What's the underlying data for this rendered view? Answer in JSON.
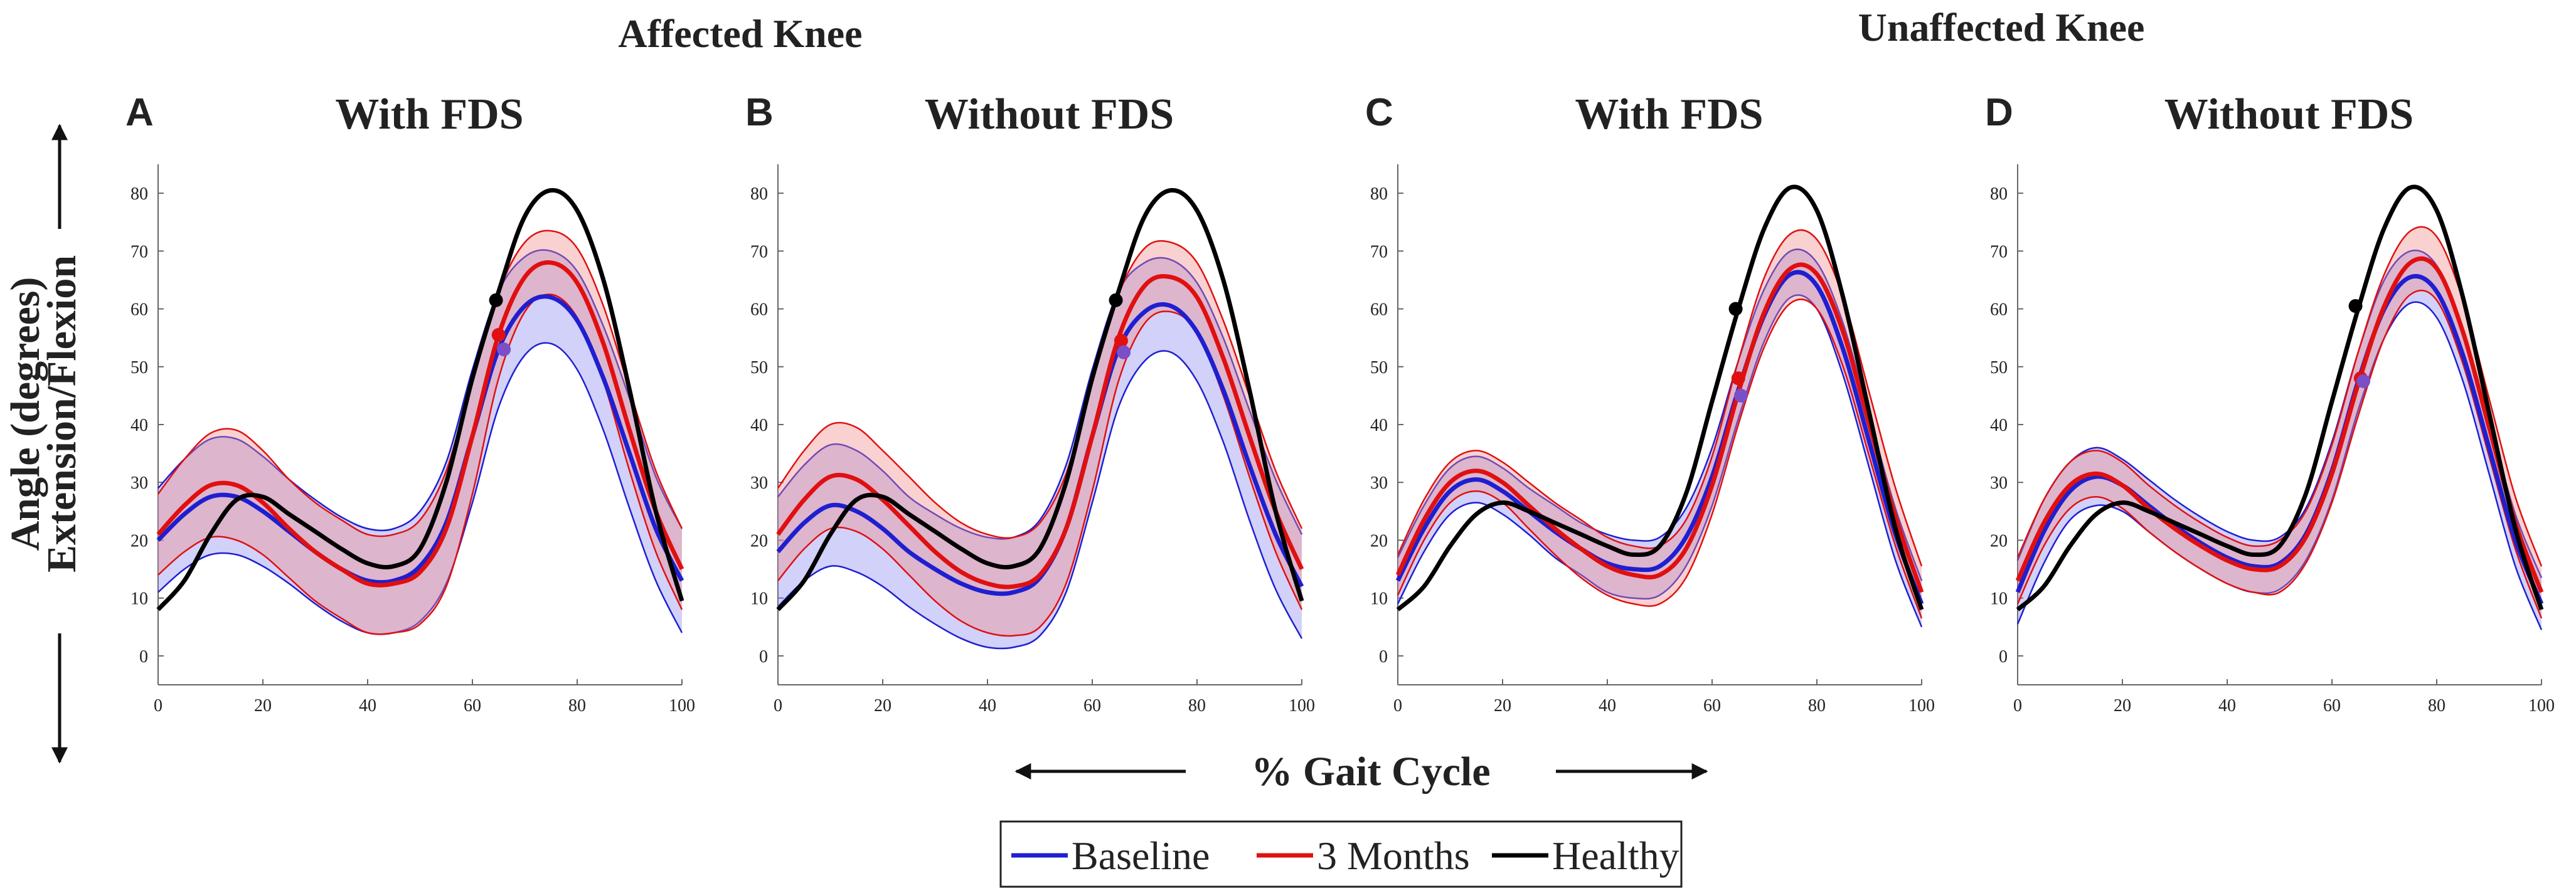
{
  "figure": {
    "group_titles": [
      "Affected Knee",
      "Unaffected Knee"
    ],
    "ylabel_line1": "Angle (degrees)",
    "ylabel_line2": "Extension/Flexion",
    "xlabel": "% Gait Cycle",
    "legend": [
      {
        "label": "Baseline",
        "color": "#1f1fd0"
      },
      {
        "label": "3 Months",
        "color": "#e01010"
      },
      {
        "label": "Healthy",
        "color": "#000000"
      }
    ],
    "band_colors": {
      "baseline": "#8c8cf0",
      "months3": "#f08c8c"
    }
  },
  "chart_data": [
    {
      "type": "line",
      "panel": "A",
      "title": "With FDS",
      "group": "Affected Knee",
      "xlim": [
        0,
        100
      ],
      "ylim": [
        -5,
        85
      ],
      "xticks": [
        0,
        20,
        40,
        60,
        80,
        100
      ],
      "yticks": [
        0,
        10,
        20,
        30,
        40,
        50,
        60,
        70,
        80
      ],
      "x": [
        0,
        5,
        10,
        15,
        20,
        25,
        30,
        35,
        40,
        45,
        50,
        55,
        60,
        65,
        70,
        75,
        80,
        85,
        90,
        95,
        100
      ],
      "series": [
        {
          "name": "Baseline",
          "mean": [
            20,
            24.5,
            27.5,
            27.5,
            25,
            21.5,
            18,
            15,
            13,
            13,
            15.5,
            23,
            38,
            53,
            60.5,
            62,
            58,
            48,
            35,
            22,
            13
          ],
          "sd": [
            9,
            9.5,
            10,
            10,
            9.5,
            9,
            9,
            9,
            9,
            9,
            9.5,
            10.5,
            11.5,
            10,
            8.5,
            8,
            8.5,
            9,
            9.5,
            9,
            9
          ]
        },
        {
          "name": "3 Months",
          "mean": [
            21,
            26,
            29.5,
            29.5,
            26.5,
            22,
            18,
            15,
            12.5,
            12.5,
            14.5,
            22,
            38,
            55.5,
            65.5,
            68,
            64.5,
            54,
            39,
            25,
            15
          ],
          "sd": [
            7,
            8,
            9,
            9.5,
            9,
            8.5,
            8.5,
            8.5,
            8.5,
            8.5,
            9,
            10,
            10,
            7.5,
            6,
            5.5,
            6,
            6.5,
            7,
            7,
            7
          ]
        },
        {
          "name": "Healthy",
          "mean": [
            8,
            13,
            21,
            27,
            27.5,
            24.5,
            21.5,
            18.5,
            16,
            15.5,
            18.5,
            30,
            48,
            63,
            76,
            80.5,
            77,
            65,
            46,
            25,
            9.5
          ]
        }
      ],
      "markers": [
        {
          "series": "Healthy",
          "x": 64.5,
          "y": 61.5
        },
        {
          "series": "3 Months",
          "x": 65,
          "y": 55.5
        },
        {
          "series": "Baseline",
          "x": 66,
          "y": 53
        }
      ]
    },
    {
      "type": "line",
      "panel": "B",
      "title": "Without FDS",
      "group": "Affected Knee",
      "xlim": [
        0,
        100
      ],
      "ylim": [
        -5,
        85
      ],
      "xticks": [
        0,
        20,
        40,
        60,
        80,
        100
      ],
      "yticks": [
        0,
        10,
        20,
        30,
        40,
        50,
        60,
        70,
        80
      ],
      "x": [
        0,
        5,
        10,
        15,
        20,
        25,
        30,
        35,
        40,
        45,
        50,
        55,
        60,
        65,
        70,
        75,
        80,
        85,
        90,
        95,
        100
      ],
      "series": [
        {
          "name": "Baseline",
          "mean": [
            18,
            23,
            26,
            25,
            22,
            18,
            15,
            12.5,
            11,
            11,
            13.5,
            22,
            38,
            53,
            59.5,
            60.5,
            56,
            46,
            33,
            21,
            12
          ],
          "sd": [
            9.5,
            10,
            10.5,
            10.5,
            10,
            9.5,
            9.5,
            9.5,
            9.5,
            9.5,
            10,
            11,
            11.5,
            10,
            8.5,
            8,
            8.5,
            9,
            9.5,
            9.5,
            9
          ]
        },
        {
          "name": "3 Months",
          "mean": [
            21,
            27,
            31,
            30.5,
            27,
            22.5,
            18,
            14.5,
            12.5,
            12,
            14,
            22,
            38,
            55,
            64,
            65.5,
            62,
            51.5,
            38,
            25,
            15
          ],
          "sd": [
            8,
            8.5,
            9,
            9,
            8.5,
            8.5,
            8.5,
            8.5,
            8.5,
            8.5,
            9,
            9.5,
            9.5,
            7.5,
            6.5,
            6,
            6,
            6.5,
            7,
            7,
            7
          ]
        },
        {
          "name": "Healthy",
          "mean": [
            8,
            13,
            21,
            27,
            27.5,
            24.5,
            21.5,
            18.5,
            16,
            15.5,
            18.5,
            30,
            48,
            63,
            76,
            80.5,
            77,
            65,
            46,
            25,
            9.5
          ]
        }
      ],
      "markers": [
        {
          "series": "Healthy",
          "x": 64.5,
          "y": 61.5
        },
        {
          "series": "3 Months",
          "x": 65.5,
          "y": 54.5
        },
        {
          "series": "Baseline",
          "x": 66,
          "y": 52.5
        }
      ]
    },
    {
      "type": "line",
      "panel": "C",
      "title": "With FDS",
      "group": "Unaffected Knee",
      "xlim": [
        0,
        100
      ],
      "ylim": [
        -5,
        85
      ],
      "xticks": [
        0,
        20,
        40,
        60,
        80,
        100
      ],
      "yticks": [
        0,
        10,
        20,
        30,
        40,
        50,
        60,
        70,
        80
      ],
      "x": [
        0,
        5,
        10,
        15,
        20,
        25,
        30,
        35,
        40,
        45,
        50,
        55,
        60,
        65,
        70,
        75,
        80,
        85,
        90,
        95,
        100
      ],
      "series": [
        {
          "name": "Baseline",
          "mean": [
            13,
            22,
            28.5,
            30.5,
            28.5,
            25,
            21.5,
            18.5,
            16,
            15,
            15.5,
            20.5,
            31,
            46,
            59,
            66,
            64,
            53,
            37,
            21,
            9
          ],
          "sd": [
            4,
            4,
            4,
            4,
            4,
            4,
            4.5,
            4.5,
            5,
            5,
            5,
            5,
            5,
            5,
            4.5,
            4,
            4,
            4.5,
            4.5,
            4.5,
            4
          ]
        },
        {
          "name": "3 Months",
          "mean": [
            14,
            23.5,
            30,
            32,
            30,
            26,
            22,
            18.5,
            15.5,
            14,
            14,
            18.5,
            29.5,
            45.5,
            59.5,
            67,
            66,
            56,
            40,
            24,
            11
          ],
          "sd": [
            3.5,
            3.5,
            3.5,
            3.5,
            3.5,
            4,
            4.5,
            5,
            5,
            5,
            5,
            5,
            5,
            5.5,
            6,
            6,
            6,
            6,
            5.5,
            5,
            4.5
          ]
        },
        {
          "name": "Healthy",
          "mean": [
            8,
            12,
            19,
            24.5,
            26.5,
            25,
            23,
            21,
            19,
            17.5,
            19,
            28,
            44,
            60,
            74,
            81,
            77,
            62,
            42,
            22,
            8
          ]
        }
      ],
      "markers": [
        {
          "series": "Healthy",
          "x": 64.5,
          "y": 60
        },
        {
          "series": "3 Months",
          "x": 65,
          "y": 48
        },
        {
          "series": "Baseline",
          "x": 65.5,
          "y": 45
        }
      ]
    },
    {
      "type": "line",
      "panel": "D",
      "title": "Without FDS",
      "group": "Unaffected Knee",
      "xlim": [
        0,
        100
      ],
      "ylim": [
        -5,
        85
      ],
      "xticks": [
        0,
        20,
        40,
        60,
        80,
        100
      ],
      "yticks": [
        0,
        10,
        20,
        30,
        40,
        50,
        60,
        70,
        80
      ],
      "x": [
        0,
        5,
        10,
        15,
        20,
        25,
        30,
        35,
        40,
        45,
        50,
        55,
        60,
        65,
        70,
        75,
        80,
        85,
        90,
        95,
        100
      ],
      "series": [
        {
          "name": "Baseline",
          "mean": [
            11,
            21.5,
            28.5,
            31,
            29.5,
            26,
            22.5,
            19.5,
            17,
            15.5,
            16,
            21,
            32,
            47.5,
            60,
            65.5,
            63,
            52,
            36,
            20,
            9
          ],
          "sd": [
            5.5,
            5.5,
            5,
            5,
            4.5,
            4.5,
            4.5,
            4.5,
            4.5,
            4.5,
            4.5,
            4.5,
            5,
            5,
            5,
            4.5,
            4.5,
            4.5,
            4.5,
            4.5,
            4.5
          ]
        },
        {
          "name": "3 Months",
          "mean": [
            13,
            23,
            29.5,
            31.5,
            29.5,
            25.5,
            22,
            19,
            16.5,
            15,
            15.5,
            20.5,
            31.5,
            47,
            60.5,
            68,
            67,
            56,
            39.5,
            23,
            11
          ],
          "sd": [
            4,
            4,
            4,
            4,
            4,
            4,
            4,
            4,
            4,
            4,
            4.5,
            4.5,
            5,
            5.5,
            5.5,
            5.5,
            5.5,
            5.5,
            5,
            4.5,
            4.5
          ]
        },
        {
          "name": "Healthy",
          "mean": [
            8,
            12,
            19,
            24.5,
            26.5,
            25,
            23,
            21,
            19,
            17.5,
            19,
            28,
            44,
            60,
            74,
            81,
            77,
            62,
            42,
            22,
            8
          ]
        }
      ],
      "markers": [
        {
          "series": "Healthy",
          "x": 64.5,
          "y": 60.5
        },
        {
          "series": "3 Months",
          "x": 65.5,
          "y": 48
        },
        {
          "series": "Baseline",
          "x": 66,
          "y": 47.5
        }
      ]
    }
  ]
}
